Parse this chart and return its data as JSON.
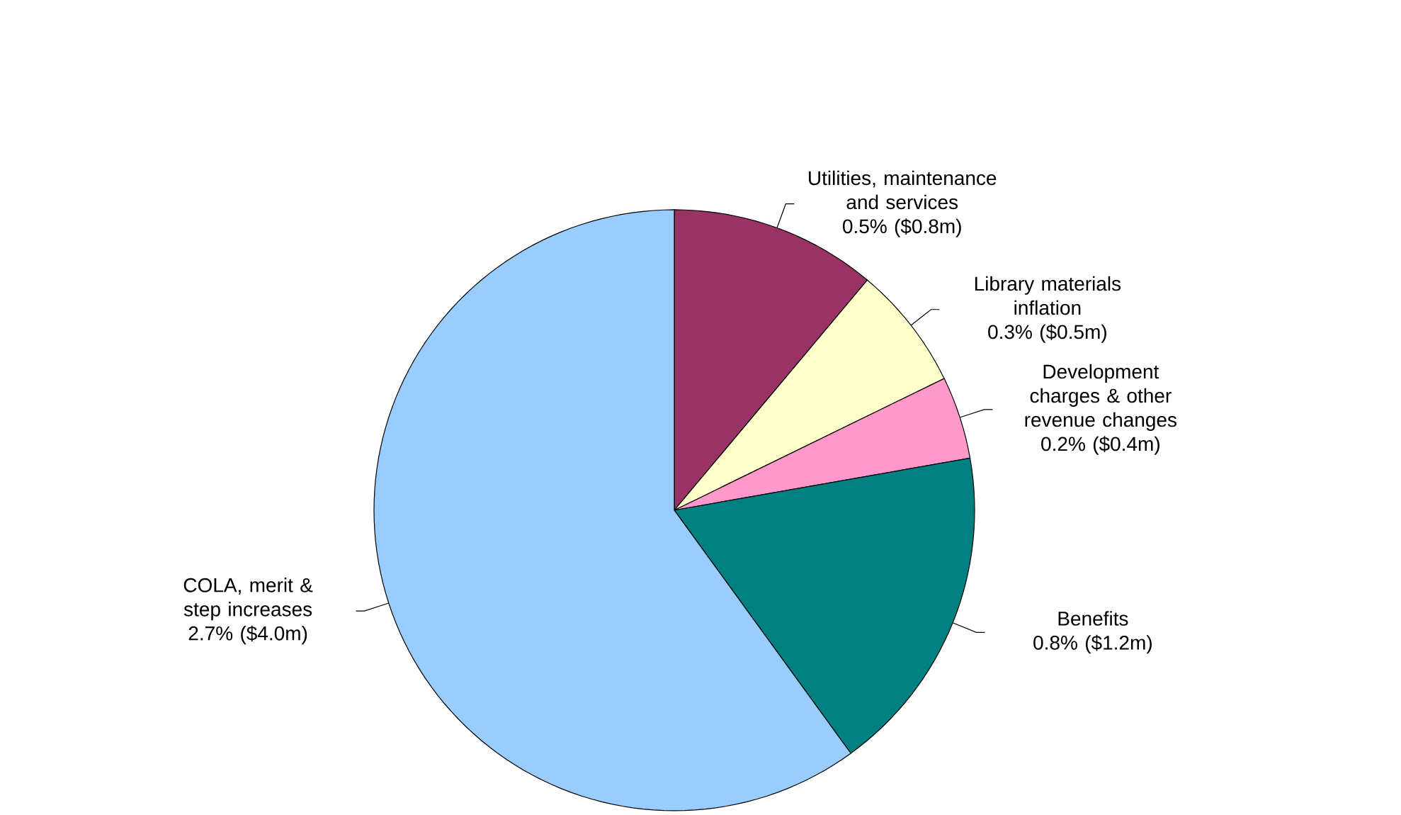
{
  "chart_data": {
    "type": "pie",
    "categories": [
      "Utilities, maintenance and services",
      "Library materials inflation",
      "Development charges & other revenue changes",
      "Benefits",
      "COLA, merit & step increases"
    ],
    "values": [
      0.5,
      0.3,
      0.2,
      0.8,
      2.7
    ],
    "value_labels": [
      "0.5% ($0.8m)",
      "0.3% ($0.5m)",
      "0.2% ($0.4m)",
      "0.8% ($1.2m)",
      "2.7% ($4.0m)"
    ],
    "colors": [
      "#993366",
      "#ffffcc",
      "#ff99cc",
      "#008080",
      "#99ccff"
    ]
  }
}
